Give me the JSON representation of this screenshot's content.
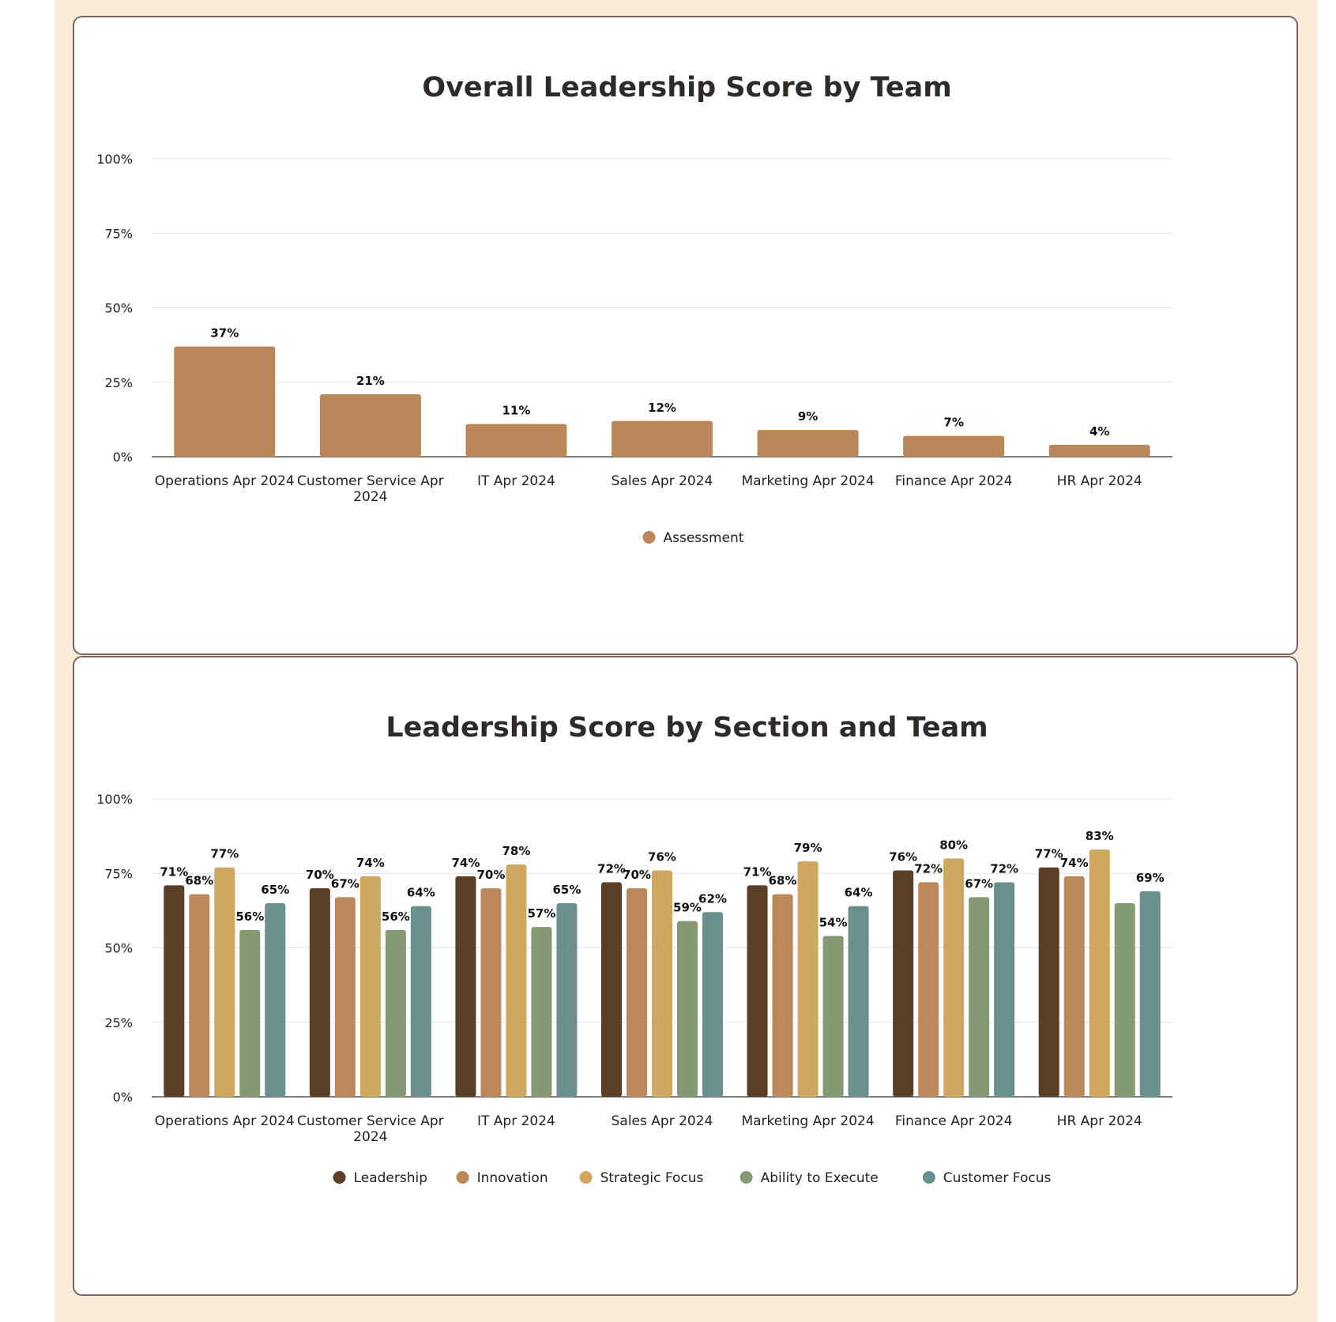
{
  "chart_data": [
    {
      "type": "bar",
      "title": "Overall Leadership Score by Team",
      "categories": [
        [
          "Operations Apr 2024"
        ],
        [
          "Customer Service Apr",
          "2024"
        ],
        [
          "IT Apr 2024"
        ],
        [
          "Sales Apr 2024"
        ],
        [
          "Marketing Apr 2024"
        ],
        [
          "Finance Apr 2024"
        ],
        [
          "HR Apr 2024"
        ]
      ],
      "series": [
        {
          "name": "Assessment",
          "color": "#b98758",
          "values": [
            37,
            21,
            11,
            12,
            9,
            7,
            4
          ]
        }
      ],
      "yticks": [
        "0%",
        "25%",
        "50%",
        "75%",
        "100%"
      ],
      "ylim": [
        0,
        100
      ],
      "xlabel": "",
      "ylabel": "",
      "legend": "bottom"
    },
    {
      "type": "bar",
      "title": "Leadership Score by Section and Team",
      "categories": [
        [
          "Operations Apr 2024"
        ],
        [
          "Customer Service Apr",
          "2024"
        ],
        [
          "IT Apr 2024"
        ],
        [
          "Sales Apr 2024"
        ],
        [
          "Marketing Apr 2024"
        ],
        [
          "Finance Apr 2024"
        ],
        [
          "HR Apr 2024"
        ]
      ],
      "series": [
        {
          "name": "Leadership",
          "color": "#5a3e26",
          "values": [
            71,
            70,
            74,
            72,
            71,
            76,
            77
          ],
          "labels": [
            true,
            true,
            true,
            true,
            true,
            true,
            true
          ]
        },
        {
          "name": "Innovation",
          "color": "#bc8759",
          "values": [
            68,
            67,
            70,
            70,
            68,
            72,
            74
          ],
          "labels": [
            true,
            true,
            true,
            true,
            true,
            true,
            true
          ]
        },
        {
          "name": "Strategic Focus",
          "color": "#cfa75e",
          "values": [
            77,
            74,
            78,
            76,
            79,
            80,
            83
          ],
          "labels": [
            true,
            true,
            true,
            true,
            true,
            true,
            true
          ]
        },
        {
          "name": "Ability to Execute",
          "color": "#839a72",
          "values": [
            56,
            56,
            57,
            59,
            54,
            67,
            65
          ],
          "labels": [
            true,
            true,
            true,
            true,
            true,
            true,
            false
          ]
        },
        {
          "name": "Customer Focus",
          "color": "#6a908e",
          "values": [
            65,
            64,
            65,
            62,
            64,
            72,
            69
          ],
          "labels": [
            true,
            true,
            true,
            true,
            true,
            true,
            true
          ]
        }
      ],
      "yticks": [
        "0%",
        "25%",
        "50%",
        "75%",
        "100%"
      ],
      "ylim": [
        0,
        100
      ],
      "xlabel": "",
      "ylabel": "",
      "legend": "bottom"
    }
  ]
}
